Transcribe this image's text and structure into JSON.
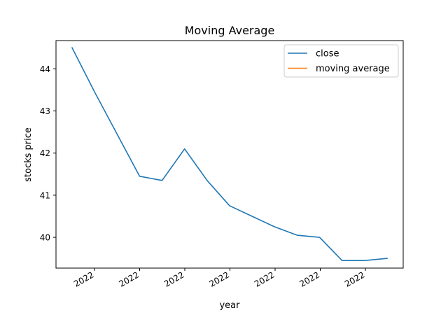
{
  "chart_data": {
    "type": "line",
    "title": "Moving Average",
    "xlabel": "year",
    "ylabel": "stocks price",
    "x_tick_labels": [
      "2022",
      "2022",
      "2022",
      "2022",
      "2022",
      "2022",
      "2022"
    ],
    "y_ticks": [
      40,
      41,
      42,
      43,
      44
    ],
    "ylim": [
      39.27,
      44.67
    ],
    "grid": false,
    "legend_position": "upper right",
    "series": [
      {
        "name": "close",
        "color": "#1f77b4",
        "values": [
          44.5,
          43.45,
          42.45,
          41.45,
          41.35,
          42.1,
          41.35,
          40.75,
          40.5,
          40.25,
          40.05,
          40.0,
          39.45,
          39.45,
          39.5
        ]
      },
      {
        "name": "moving average",
        "color": "#ff7f0e",
        "values": []
      }
    ]
  }
}
